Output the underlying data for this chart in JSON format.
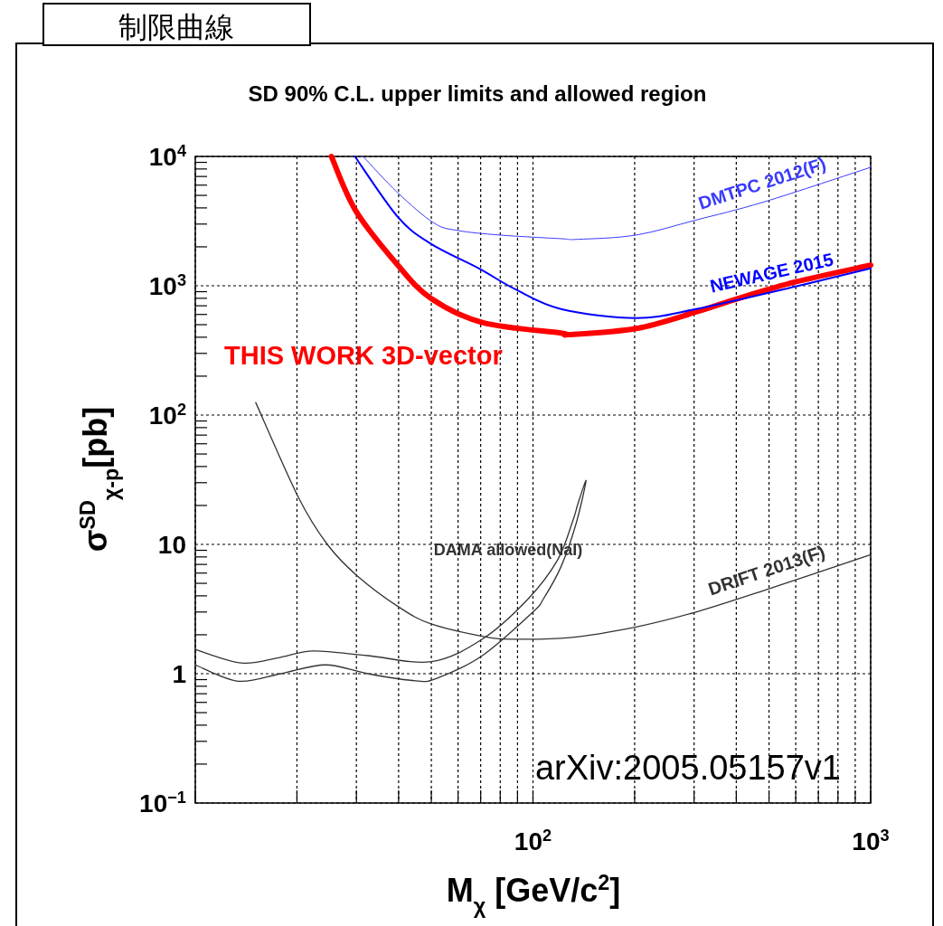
{
  "chart_data": {
    "type": "line",
    "title": "制限曲線",
    "subtitle": "SD 90% C.L. upper limits and allowed region",
    "xlabel": "M$_{χ}$ [GeV/c$^{2}$]",
    "ylabel": "σ$^{SD}$$_{χ-p}$[pb]",
    "log": "xy",
    "grid": true,
    "xlim": [
      10,
      1000
    ],
    "ylim": [
      0.1,
      10000
    ],
    "xticks": [
      {
        "value": 10,
        "label": null
      },
      {
        "value": 20,
        "label": null
      },
      {
        "value": 30,
        "label": null
      },
      {
        "value": 40,
        "label": null
      },
      {
        "value": 50,
        "label": null
      },
      {
        "value": 60,
        "label": null
      },
      {
        "value": 70,
        "label": null
      },
      {
        "value": 80,
        "label": null
      },
      {
        "value": 90,
        "label": null
      },
      {
        "value": 100,
        "label": "10$^{2}$"
      },
      {
        "value": 200,
        "label": null
      },
      {
        "value": 300,
        "label": null
      },
      {
        "value": 400,
        "label": null
      },
      {
        "value": 500,
        "label": null
      },
      {
        "value": 600,
        "label": null
      },
      {
        "value": 700,
        "label": null
      },
      {
        "value": 800,
        "label": null
      },
      {
        "value": 900,
        "label": null
      },
      {
        "value": 1000,
        "label": "10$^{3}$"
      }
    ],
    "yticks": [
      {
        "value": 0.1,
        "label": "10$^{−1}$"
      },
      1,
      10,
      {
        "value": 100,
        "label": "10$^{2}$"
      },
      {
        "value": 1000,
        "label": "10$^{3}$"
      },
      {
        "value": 10000,
        "label": "10$^{4}$"
      }
    ],
    "series": [
      {
        "name": "THIS WORK 3D-vector",
        "color": "#ff0000",
        "x": [
          25.3,
          29.9,
          39.8,
          49.9,
          70.8,
          120.8,
          128,
          202,
          304,
          405,
          600,
          1000
        ],
        "values": [
          10000,
          3785,
          1442,
          798,
          520,
          431,
          419,
          467,
          627,
          798,
          1072,
          1442
        ]
      },
      {
        "name": "NEWAGE 2015",
        "color": "#0000ff",
        "x": [
          29.7,
          39.8,
          50,
          69,
          88.7,
          121,
          202,
          304,
          600,
          1000
        ],
        "values": [
          10000,
          3400,
          2100,
          1365,
          938,
          661,
          563,
          661,
          989,
          1365
        ]
      },
      {
        "name": "DMTPC 2012(F)",
        "color": "#3a3aff",
        "x": [
          31.4,
          39.8,
          50.9,
          60,
          79.9,
          121,
          136,
          202,
          304,
          483,
          1000
        ],
        "values": [
          10000,
          5224,
          3055,
          2673,
          2466,
          2312,
          2286,
          2466,
          3224,
          4448,
          8240
        ]
      },
      {
        "name": "DRIFT 2013(F)",
        "color": "#333333",
        "x": [
          15.1,
          20.2,
          24.6,
          30.2,
          40.2,
          49.9,
          70.8,
          86.7,
          128,
          202,
          304,
          495,
          1000
        ],
        "values": [
          125,
          23.1,
          10,
          5.7,
          3.26,
          2.43,
          1.95,
          1.85,
          1.9,
          2.3,
          3,
          4.5,
          8.34
        ]
      },
      {
        "name": "DAMA allowed(NaI)",
        "color": "#333333",
        "x": [
          10,
          13.7,
          17.9,
          22.4,
          32.4,
          50,
          70.8,
          96.2,
          118,
          131,
          136,
          143.6,
          134,
          121,
          107,
          100,
          70.8,
          51.9,
          45,
          32.4,
          24.3,
          17.9,
          13.4,
          10
        ],
        "values": [
          1.54,
          1.21,
          1.34,
          1.5,
          1.38,
          1.24,
          1.85,
          3.73,
          7.5,
          15,
          20.8,
          31,
          14.3,
          6.7,
          3.73,
          3,
          1.38,
          0.92,
          0.88,
          1,
          1.17,
          1,
          0.875,
          1.17
        ]
      }
    ],
    "annotations": [
      "arXiv:2005.05157v1"
    ]
  }
}
